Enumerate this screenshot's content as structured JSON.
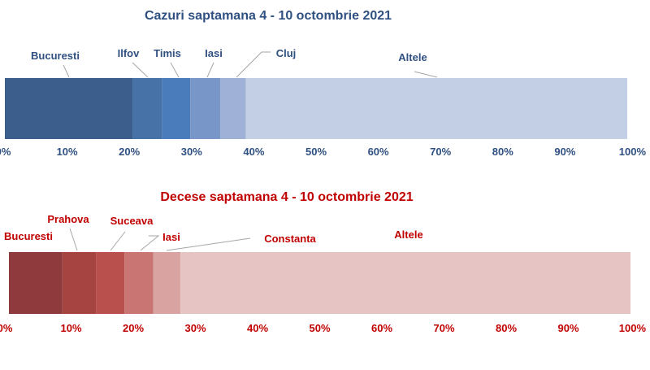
{
  "chart_data": [
    {
      "type": "bar",
      "stacked": true,
      "orientation": "horizontal",
      "title": "Cazuri saptamana 4 - 10 octombrie 2021",
      "title_color": "#2f5081",
      "label_color": "#2f5081",
      "axis_color": "#2f5081",
      "xlim": [
        0,
        100
      ],
      "ticks": [
        "0%",
        "10%",
        "20%",
        "30%",
        "40%",
        "50%",
        "60%",
        "70%",
        "80%",
        "90%",
        "100%"
      ],
      "series": [
        {
          "name": "Bucuresti",
          "value": 20.5,
          "color": "#3b5e8c"
        },
        {
          "name": "Ilfov",
          "value": 4.8,
          "color": "#4672a8"
        },
        {
          "name": "Timis",
          "value": 4.5,
          "color": "#4a7cbc"
        },
        {
          "name": "Iasi",
          "value": 4.8,
          "color": "#7996c9"
        },
        {
          "name": "Cluj",
          "value": 4.1,
          "color": "#9fb1d6"
        },
        {
          "name": "Altele",
          "value": 61.3,
          "color": "#c3cfe4"
        }
      ]
    },
    {
      "type": "bar",
      "stacked": true,
      "orientation": "horizontal",
      "title": "Decese saptamana 4 - 10 octombrie 2021",
      "title_color": "#c00000",
      "label_color": "#c00000",
      "axis_color": "#c00000",
      "xlim": [
        0,
        100
      ],
      "ticks": [
        "0%",
        "10%",
        "20%",
        "30%",
        "40%",
        "50%",
        "60%",
        "70%",
        "80%",
        "90%",
        "100%"
      ],
      "series": [
        {
          "name": "Bucuresti",
          "value": 8.6,
          "color": "#8f3a3c"
        },
        {
          "name": "Prahova",
          "value": 5.4,
          "color": "#a64441"
        },
        {
          "name": "Suceava",
          "value": 4.6,
          "color": "#b9504d"
        },
        {
          "name": "Iasi",
          "value": 4.6,
          "color": "#c97573"
        },
        {
          "name": "Constanta",
          "value": 4.4,
          "color": "#d9a3a2"
        },
        {
          "name": "Altele",
          "value": 72.4,
          "color": "#e6c4c4"
        }
      ]
    }
  ]
}
